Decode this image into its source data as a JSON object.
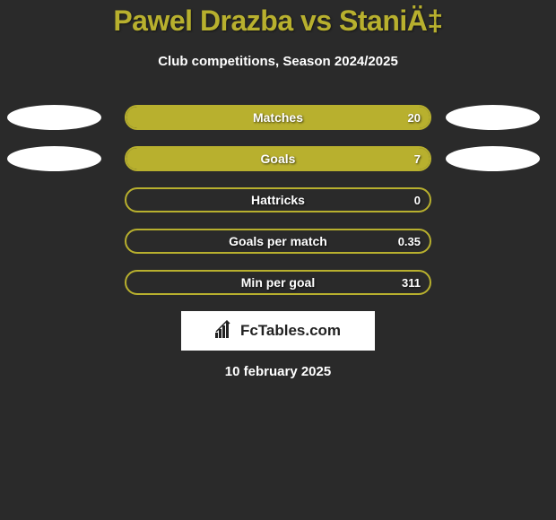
{
  "title": "Pawel Drazba vs StaniÄ‡",
  "subtitle": "Club competitions, Season 2024/2025",
  "colors": {
    "background": "#2a2a2a",
    "accent": "#b8b02e",
    "text": "#ffffff",
    "ellipse": "#ffffff",
    "logo_bg": "#ffffff",
    "logo_text": "#222222"
  },
  "stats": [
    {
      "label": "Matches",
      "value": "20",
      "fill_pct": 100,
      "show_left_ellipse": true,
      "show_right_ellipse": true
    },
    {
      "label": "Goals",
      "value": "7",
      "fill_pct": 100,
      "show_left_ellipse": true,
      "show_right_ellipse": true
    },
    {
      "label": "Hattricks",
      "value": "0",
      "fill_pct": 0,
      "show_left_ellipse": false,
      "show_right_ellipse": false
    },
    {
      "label": "Goals per match",
      "value": "0.35",
      "fill_pct": 0,
      "show_left_ellipse": false,
      "show_right_ellipse": false
    },
    {
      "label": "Min per goal",
      "value": "311",
      "fill_pct": 0,
      "show_left_ellipse": false,
      "show_right_ellipse": false
    }
  ],
  "logo": {
    "text": "FcTables.com",
    "icon": "chart-bars"
  },
  "date": "10 february 2025"
}
